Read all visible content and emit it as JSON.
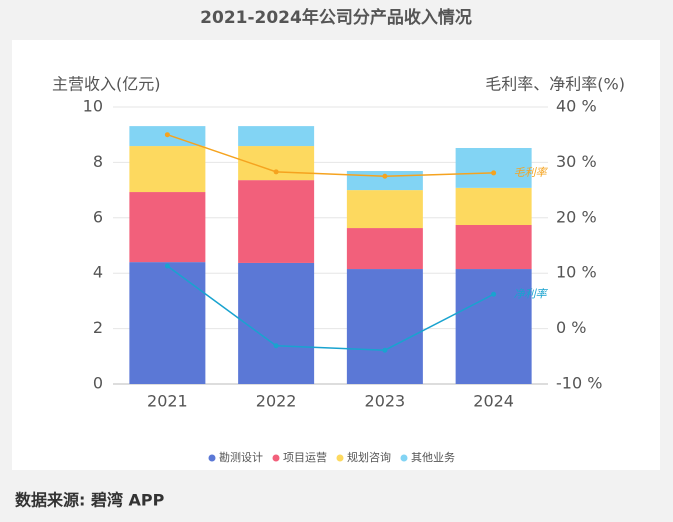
{
  "chart_data": {
    "type": "bar",
    "title": "2021-2024年公司分产品收入情况",
    "ylabel": "主营收入(亿元)",
    "y2label": "毛利率、净利率(%)",
    "categories": [
      "2021",
      "2022",
      "2023",
      "2024"
    ],
    "series": [
      {
        "name": "勘测设计",
        "type": "bar",
        "color": "#5b78d6",
        "values": [
          4.4,
          4.37,
          4.15,
          4.15
        ]
      },
      {
        "name": "项目运营",
        "type": "bar",
        "color": "#f2607b",
        "values": [
          2.53,
          2.99,
          1.48,
          1.59
        ]
      },
      {
        "name": "规划咨询",
        "type": "bar",
        "color": "#fdd95f",
        "values": [
          1.66,
          1.23,
          1.37,
          1.34
        ]
      },
      {
        "name": "其他业务",
        "type": "bar",
        "color": "#82d4f4",
        "values": [
          0.72,
          0.72,
          0.69,
          1.44
        ]
      },
      {
        "name": "毛利率",
        "type": "line",
        "axis": "y2",
        "color": "#f5a31f",
        "values": [
          35.0,
          28.3,
          27.5,
          28.1
        ]
      },
      {
        "name": "净利率",
        "type": "line",
        "axis": "y2",
        "color": "#19a3cf",
        "values": [
          11.3,
          -3.1,
          -3.9,
          6.2
        ]
      }
    ],
    "ylim": [
      0,
      10
    ],
    "yticks": [
      0,
      2,
      4,
      6,
      8,
      10
    ],
    "y2lim": [
      -10,
      40
    ],
    "y2ticks": [
      {
        "value": -10,
        "label": "-10 %"
      },
      {
        "value": 0,
        "label": "0 %"
      },
      {
        "value": 10,
        "label": "10 %"
      },
      {
        "value": 20,
        "label": "20 %"
      },
      {
        "value": 30,
        "label": "30 %"
      },
      {
        "value": 40,
        "label": "40 %"
      }
    ],
    "grid": true,
    "legend": "bottom"
  },
  "footer": "数据来源: 碧湾 APP"
}
